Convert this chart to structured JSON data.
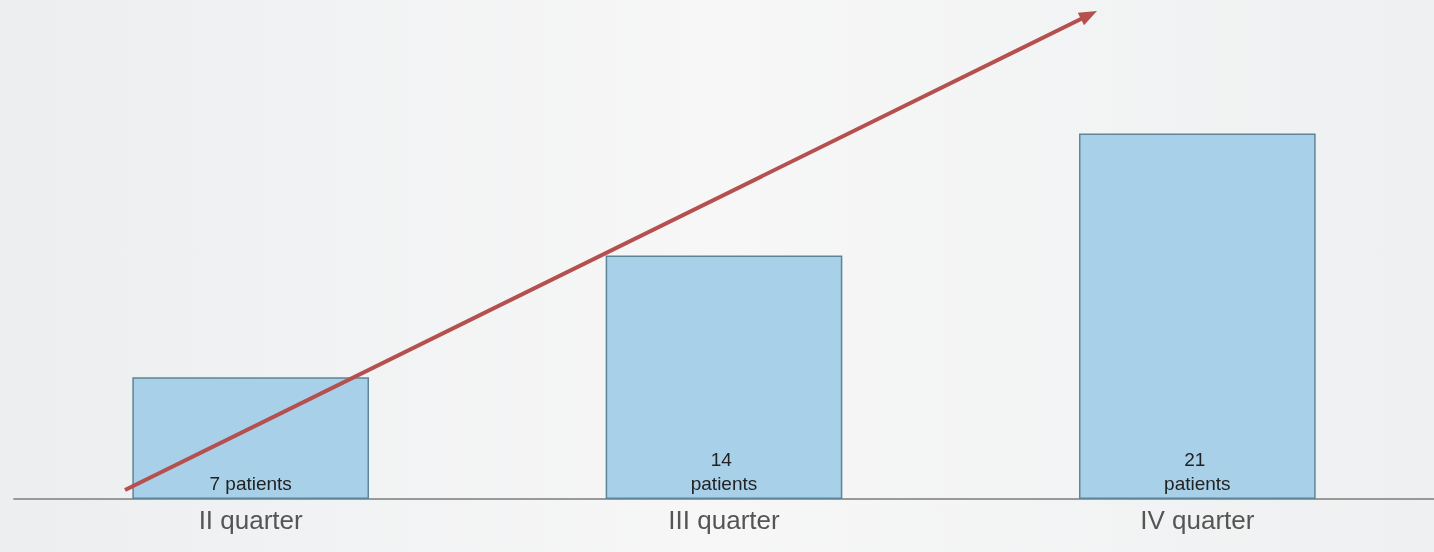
{
  "chart_data": {
    "type": "bar",
    "categories": [
      "II quarter",
      "III quarter",
      "IV quarter"
    ],
    "values": [
      7,
      14,
      21
    ],
    "value_labels": [
      "7 patients",
      "14 patients",
      "21 patients"
    ],
    "color": "#a8d1e9"
  }
}
